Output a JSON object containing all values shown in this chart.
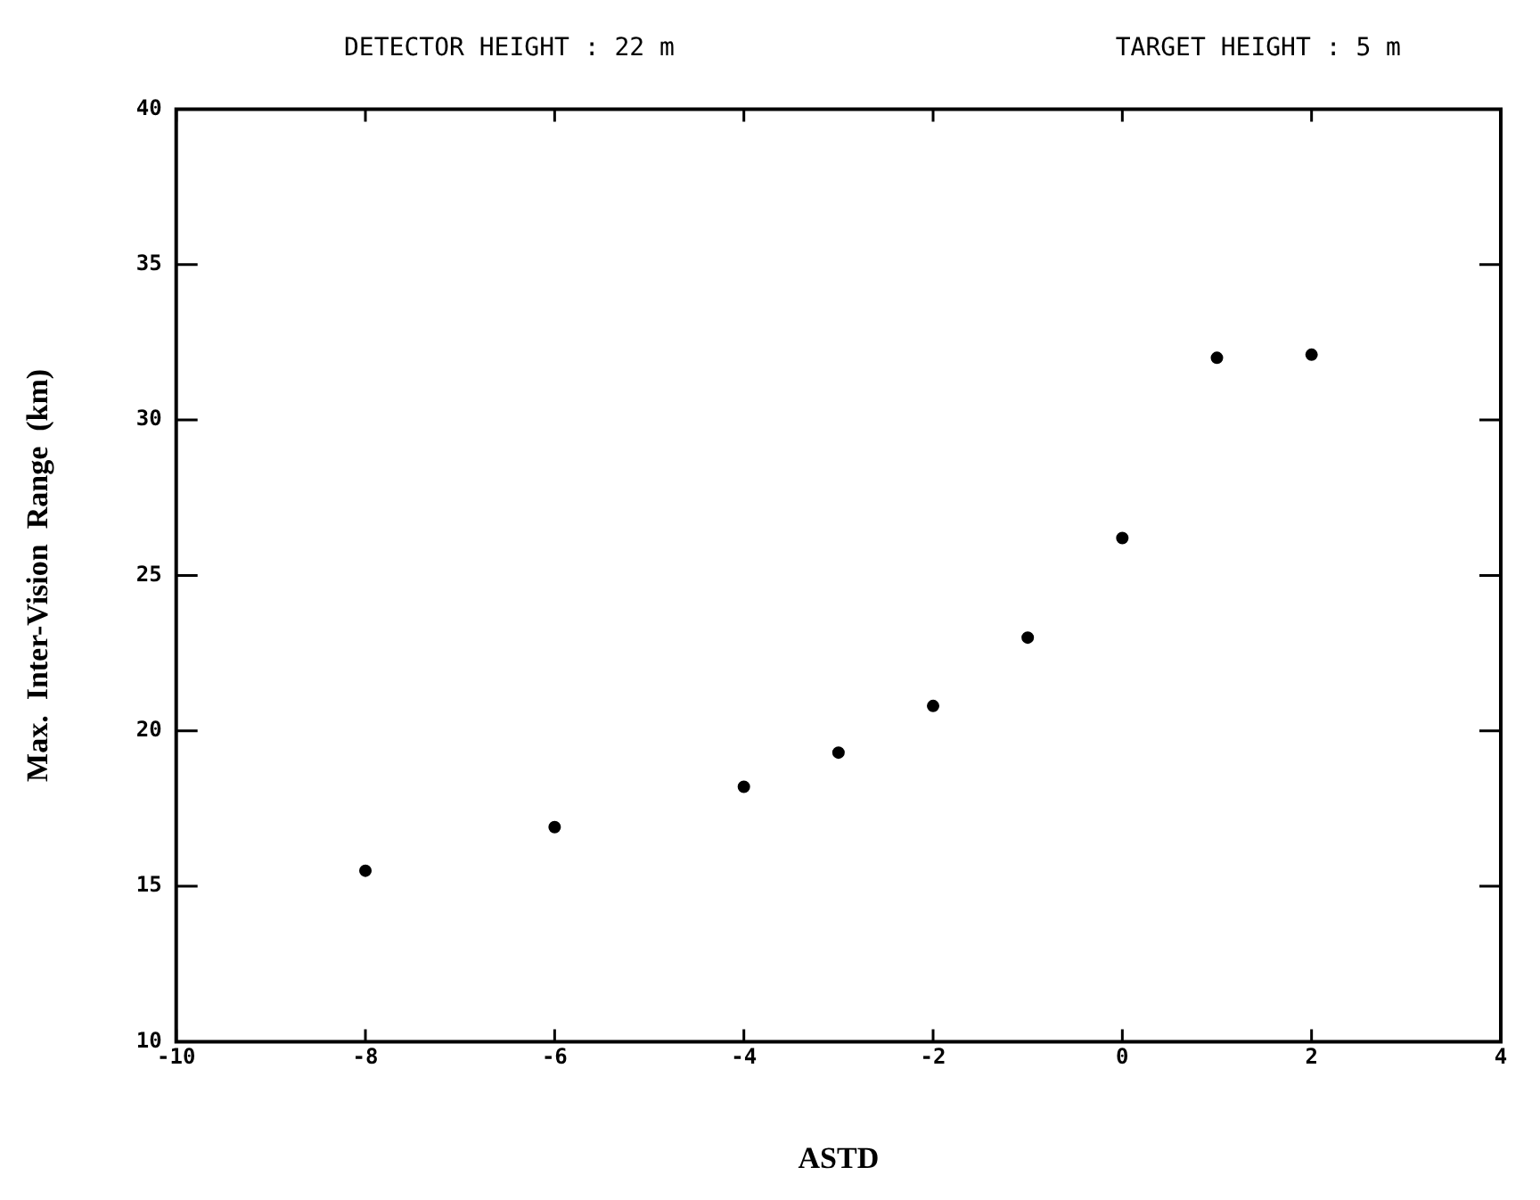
{
  "chart_data": {
    "type": "scatter",
    "annotations": [
      "DETECTOR HEIGHT : 22 m",
      "TARGET HEIGHT : 5 m"
    ],
    "xlabel": "ASTD",
    "ylabel": "Max.  Inter-Vision  Range  (km)",
    "x": [
      -8,
      -6,
      -4,
      -3,
      -2,
      -1,
      0,
      1,
      2
    ],
    "series": [
      {
        "color": "#000000",
        "values": [
          15.5,
          16.9,
          18.2,
          19.3,
          20.8,
          23.0,
          26.2,
          32.0,
          32.1
        ]
      }
    ],
    "xlim": [
      -10,
      4
    ],
    "xticks": [
      -10,
      -8,
      -6,
      -4,
      -2,
      0,
      2,
      4
    ],
    "ylim": [
      10,
      40
    ],
    "yticks": [
      10,
      15,
      20,
      25,
      30,
      35,
      40
    ],
    "grid": false,
    "legend": false,
    "marker": "circle"
  }
}
